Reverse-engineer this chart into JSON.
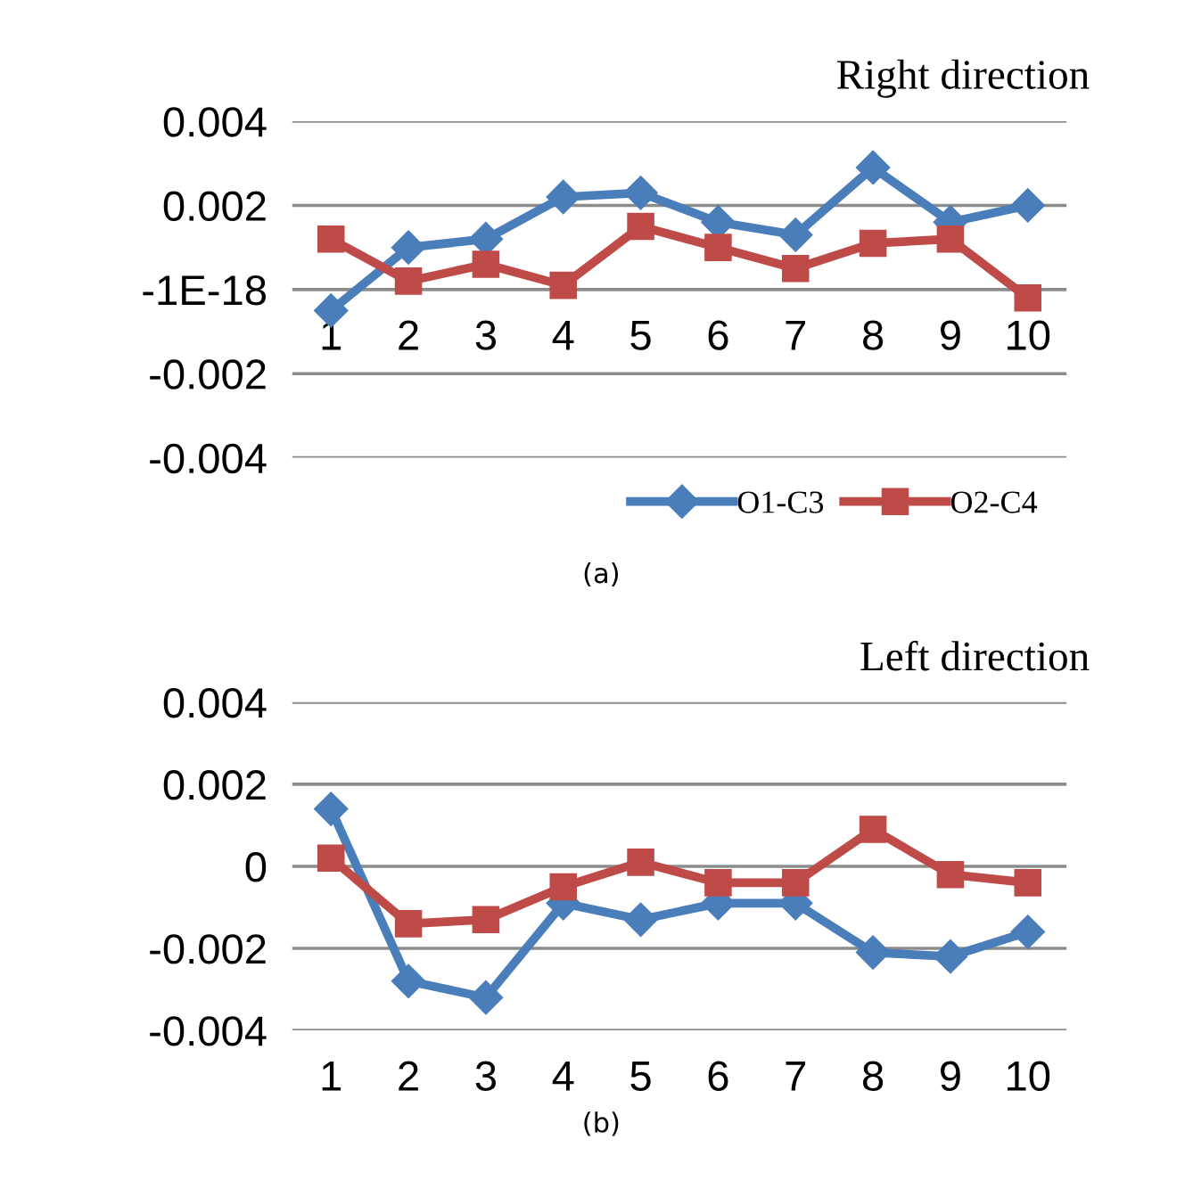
{
  "chart_data": [
    {
      "type": "line",
      "title": "Right direction",
      "categories": [
        "1",
        "2",
        "3",
        "4",
        "5",
        "6",
        "7",
        "8",
        "9",
        "10"
      ],
      "series": [
        {
          "name": "O1-C3",
          "color": "#4a7ebb",
          "marker": "diamond",
          "values": [
            -0.0005,
            0.001,
            0.0012,
            0.0022,
            0.0023,
            0.0016,
            0.0013,
            0.0029,
            0.0016,
            0.002
          ]
        },
        {
          "name": "O2-C4",
          "color": "#be4b48",
          "marker": "square",
          "values": [
            0.0012,
            0.0002,
            0.0006,
            0.0001,
            0.0015,
            0.001,
            0.0005,
            0.0011,
            0.0012,
            -0.0002
          ]
        }
      ],
      "ylim": [
        -0.004,
        0.004
      ],
      "yticks": [
        -0.004,
        -0.002,
        {
          "value": 0,
          "label": "-1E-18"
        },
        0.002,
        0.004
      ],
      "grid": "y",
      "legend": "bottom right",
      "annotations": [
        "(a)"
      ]
    },
    {
      "type": "line",
      "title": "Left direction",
      "categories": [
        "1",
        "2",
        "3",
        "4",
        "5",
        "6",
        "7",
        "8",
        "9",
        "10"
      ],
      "series": [
        {
          "color": "#4a7ebb",
          "marker": "diamond",
          "values": [
            0.0014,
            -0.0028,
            -0.0032,
            -0.0009,
            -0.0013,
            -0.0009,
            -0.0009,
            -0.0021,
            -0.0022,
            -0.0016
          ]
        },
        {
          "color": "#be4b48",
          "marker": "square",
          "values": [
            0.0002,
            -0.0014,
            -0.0013,
            -0.0005,
            0.0001,
            -0.0004,
            -0.0004,
            0.0009,
            -0.0002,
            -0.0004
          ]
        }
      ],
      "ylim": [
        -0.004,
        0.004
      ],
      "yticks": [
        -0.004,
        -0.002,
        0,
        0.002,
        0.004
      ],
      "grid": "y",
      "annotations": [
        "(b)"
      ]
    }
  ]
}
